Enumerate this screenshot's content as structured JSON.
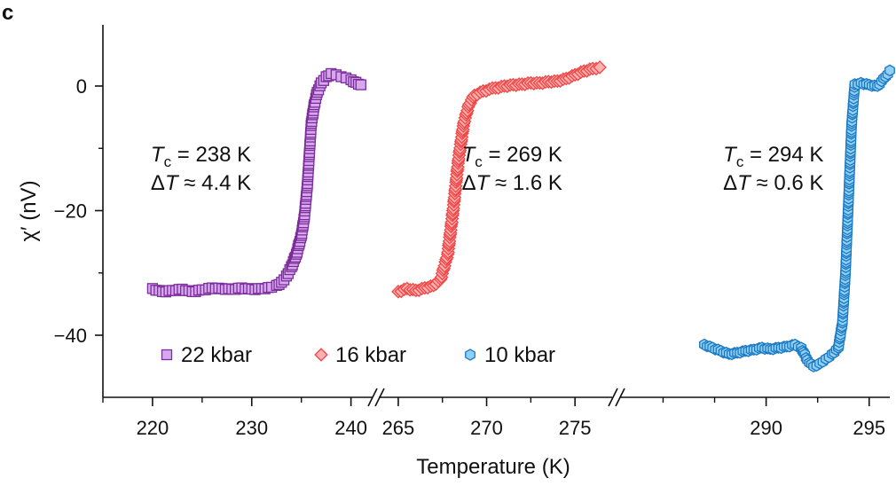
{
  "panel_label": "c",
  "chart_data": {
    "type": "scatter",
    "xlabel": "Temperature (K)",
    "ylabel": "χ′ (nV)",
    "ylim": [
      -50,
      10
    ],
    "yticks": [
      0,
      -20,
      -40
    ],
    "ytick_labels": [
      "0",
      "−20",
      "−40"
    ],
    "segments": [
      {
        "xlim": [
          215,
          242
        ],
        "ticks": [
          220,
          230,
          240
        ],
        "tick_labels": [
          "220",
          "230",
          "240"
        ]
      },
      {
        "xlim": [
          264,
          277
        ],
        "ticks": [
          265,
          270,
          275
        ],
        "tick_labels": [
          "265",
          "270",
          "275"
        ]
      },
      {
        "xlim": [
          283,
          296
        ],
        "ticks": [
          290,
          295
        ],
        "tick_labels": [
          "290",
          "295"
        ]
      }
    ],
    "legend": {
      "position": "bottom-left",
      "entries": [
        "22 kbar",
        "16 kbar",
        "10 kbar"
      ]
    },
    "series": [
      {
        "name": "22 kbar",
        "marker": "square",
        "color": "#7b2d99",
        "fill": "#d7a8ef",
        "segment": 0,
        "points": [
          [
            220,
            -32.5
          ],
          [
            221,
            -33
          ],
          [
            222,
            -32.8
          ],
          [
            223,
            -32.6
          ],
          [
            224,
            -33
          ],
          [
            225,
            -32.7
          ],
          [
            226,
            -32.4
          ],
          [
            227,
            -32.5
          ],
          [
            228,
            -32.6
          ],
          [
            229,
            -32.4
          ],
          [
            230,
            -32.6
          ],
          [
            231,
            -32.5
          ],
          [
            232,
            -32.3
          ],
          [
            232.5,
            -32
          ],
          [
            233,
            -31.5
          ],
          [
            233.5,
            -30.5
          ],
          [
            234,
            -29
          ],
          [
            234.5,
            -27
          ],
          [
            235,
            -24
          ],
          [
            235.3,
            -21
          ],
          [
            235.6,
            -16
          ],
          [
            235.8,
            -11
          ],
          [
            236,
            -6
          ],
          [
            236.3,
            -3
          ],
          [
            236.6,
            -1
          ],
          [
            237,
            0.5
          ],
          [
            237.5,
            1.5
          ],
          [
            238,
            2
          ],
          [
            238.5,
            1.8
          ],
          [
            239,
            1.5
          ],
          [
            239.5,
            1.3
          ],
          [
            240,
            1.0
          ],
          [
            240.5,
            0.6
          ],
          [
            241,
            0.2
          ]
        ]
      },
      {
        "name": "16 kbar",
        "marker": "diamond",
        "color": "#f04545",
        "fill": "#ffb0b0",
        "segment": 1,
        "points": [
          [
            265,
            -33
          ],
          [
            265.5,
            -32.5
          ],
          [
            266,
            -32.8
          ],
          [
            266.5,
            -32.4
          ],
          [
            267,
            -32
          ],
          [
            267.4,
            -31
          ],
          [
            267.8,
            -27
          ],
          [
            268.1,
            -20
          ],
          [
            268.4,
            -12
          ],
          [
            268.7,
            -6
          ],
          [
            269,
            -3
          ],
          [
            269.3,
            -1.5
          ],
          [
            269.8,
            -0.8
          ],
          [
            270.5,
            -0.3
          ],
          [
            271,
            0
          ],
          [
            271.5,
            0.2
          ],
          [
            272,
            0.3
          ],
          [
            272.5,
            0.5
          ],
          [
            273,
            0.5
          ],
          [
            273.5,
            0.7
          ],
          [
            274,
            0.8
          ],
          [
            274.5,
            1.2
          ],
          [
            275,
            1.8
          ],
          [
            275.5,
            2.4
          ],
          [
            276,
            2.8
          ],
          [
            276.4,
            3
          ]
        ]
      },
      {
        "name": "10 kbar",
        "marker": "hexagon",
        "color": "#1a78c2",
        "fill": "#8fd0f4",
        "segment": 2,
        "points": [
          [
            287,
            -41.5
          ],
          [
            287.4,
            -42
          ],
          [
            287.8,
            -42.5
          ],
          [
            288.2,
            -43
          ],
          [
            288.6,
            -42.8
          ],
          [
            289,
            -42.5
          ],
          [
            289.4,
            -42.3
          ],
          [
            289.8,
            -42
          ],
          [
            290.2,
            -42.2
          ],
          [
            290.6,
            -42
          ],
          [
            291,
            -41.8
          ],
          [
            291.4,
            -41.5
          ],
          [
            291.7,
            -42
          ],
          [
            292,
            -44
          ],
          [
            292.3,
            -45
          ],
          [
            292.6,
            -44.5
          ],
          [
            292.9,
            -43.8
          ],
          [
            293.2,
            -43
          ],
          [
            293.5,
            -42
          ],
          [
            293.7,
            -38
          ],
          [
            293.85,
            -30
          ],
          [
            293.95,
            -22
          ],
          [
            294.05,
            -14
          ],
          [
            294.15,
            -6
          ],
          [
            294.3,
            0.3
          ],
          [
            294.6,
            0.5
          ],
          [
            295,
            0.2
          ],
          [
            295.4,
            0
          ],
          [
            295.8,
            1.5
          ],
          [
            296,
            2.5
          ]
        ]
      }
    ],
    "annotations": [
      {
        "segment": 0,
        "anchor_x": 220,
        "anchor_y": -13.5,
        "tc_label": "T",
        "tc_sub": "c",
        "tc_value": " = 238 K",
        "dt_label": "Δ",
        "dt_var": "T",
        "dt_value": " ≈ 4.4 K"
      },
      {
        "segment": 1,
        "anchor_x": 268.7,
        "anchor_y": -13.5,
        "tc_label": "T",
        "tc_sub": "c",
        "tc_value": " = 269 K",
        "dt_label": "Δ",
        "dt_var": "T",
        "dt_value": " ≈ 1.6 K"
      },
      {
        "segment": 2,
        "anchor_x": 288,
        "anchor_y": -13.5,
        "tc_label": "T",
        "tc_sub": "c",
        "tc_value": " = 294 K",
        "dt_label": "Δ",
        "dt_var": "T",
        "dt_value": " ≈ 0.6 K"
      }
    ]
  }
}
